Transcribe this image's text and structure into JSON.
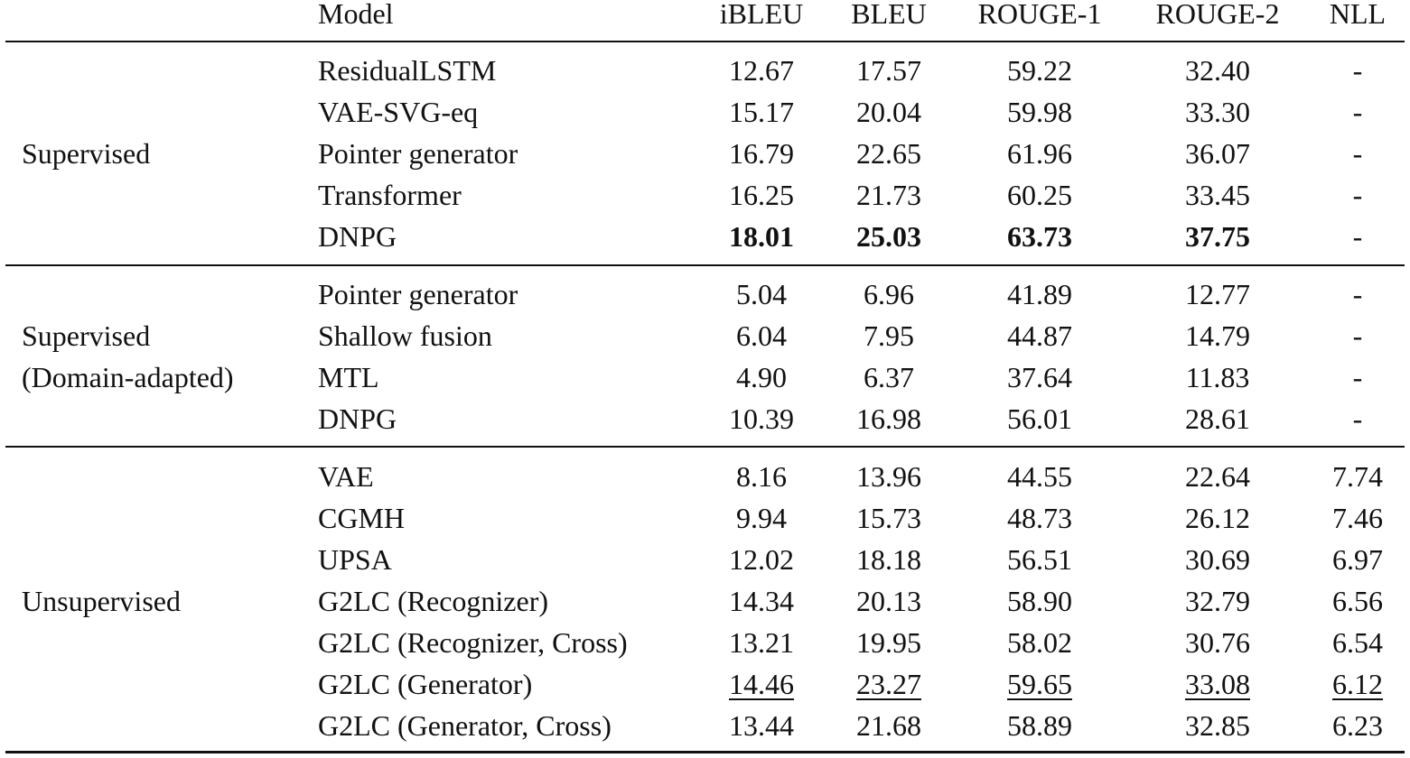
{
  "table": {
    "header": [
      "Model",
      "iBLEU",
      "BLEU",
      "ROUGE-1",
      "ROUGE-2",
      "NLL"
    ],
    "groups": [
      {
        "label": [
          "Supervised"
        ],
        "rows": [
          {
            "model": "ResidualLSTM",
            "cells": [
              "12.67",
              "17.57",
              "59.22",
              "32.40",
              "-"
            ]
          },
          {
            "model": "VAE-SVG-eq",
            "cells": [
              "15.17",
              "20.04",
              "59.98",
              "33.30",
              "-"
            ]
          },
          {
            "model": "Pointer generator",
            "cells": [
              "16.79",
              "22.65",
              "61.96",
              "36.07",
              "-"
            ]
          },
          {
            "model": "Transformer",
            "cells": [
              "16.25",
              "21.73",
              "60.25",
              "33.45",
              "-"
            ]
          },
          {
            "model": "DNPG",
            "cells": [
              "18.01",
              "25.03",
              "63.73",
              "37.75",
              "-"
            ],
            "emphasis": "bold"
          }
        ]
      },
      {
        "label": [
          "Supervised",
          "(Domain-adapted)"
        ],
        "rows": [
          {
            "model": "Pointer generator",
            "cells": [
              "5.04",
              "6.96",
              "41.89",
              "12.77",
              "-"
            ]
          },
          {
            "model": "Shallow fusion",
            "cells": [
              "6.04",
              "7.95",
              "44.87",
              "14.79",
              "-"
            ]
          },
          {
            "model": "MTL",
            "cells": [
              "4.90",
              "6.37",
              "37.64",
              "11.83",
              "-"
            ]
          },
          {
            "model": "DNPG",
            "cells": [
              "10.39",
              "16.98",
              "56.01",
              "28.61",
              "-"
            ]
          }
        ]
      },
      {
        "label": [
          "Unsupervised"
        ],
        "rows": [
          {
            "model": "VAE",
            "cells": [
              "8.16",
              "13.96",
              "44.55",
              "22.64",
              "7.74"
            ]
          },
          {
            "model": "CGMH",
            "cells": [
              "9.94",
              "15.73",
              "48.73",
              "26.12",
              "7.46"
            ]
          },
          {
            "model": "UPSA",
            "cells": [
              "12.02",
              "18.18",
              "56.51",
              "30.69",
              "6.97"
            ]
          },
          {
            "model": "G2LC (Recognizer)",
            "cells": [
              "14.34",
              "20.13",
              "58.90",
              "32.79",
              "6.56"
            ]
          },
          {
            "model": "G2LC (Recognizer, Cross)",
            "cells": [
              "13.21",
              "19.95",
              "58.02",
              "30.76",
              "6.54"
            ]
          },
          {
            "model": "G2LC (Generator)",
            "cells": [
              "14.46",
              "23.27",
              "59.65",
              "33.08",
              "6.12"
            ],
            "emphasis": "underline"
          },
          {
            "model": "G2LC (Generator, Cross)",
            "cells": [
              "13.44",
              "21.68",
              "58.89",
              "32.85",
              "6.23"
            ]
          }
        ]
      }
    ]
  }
}
